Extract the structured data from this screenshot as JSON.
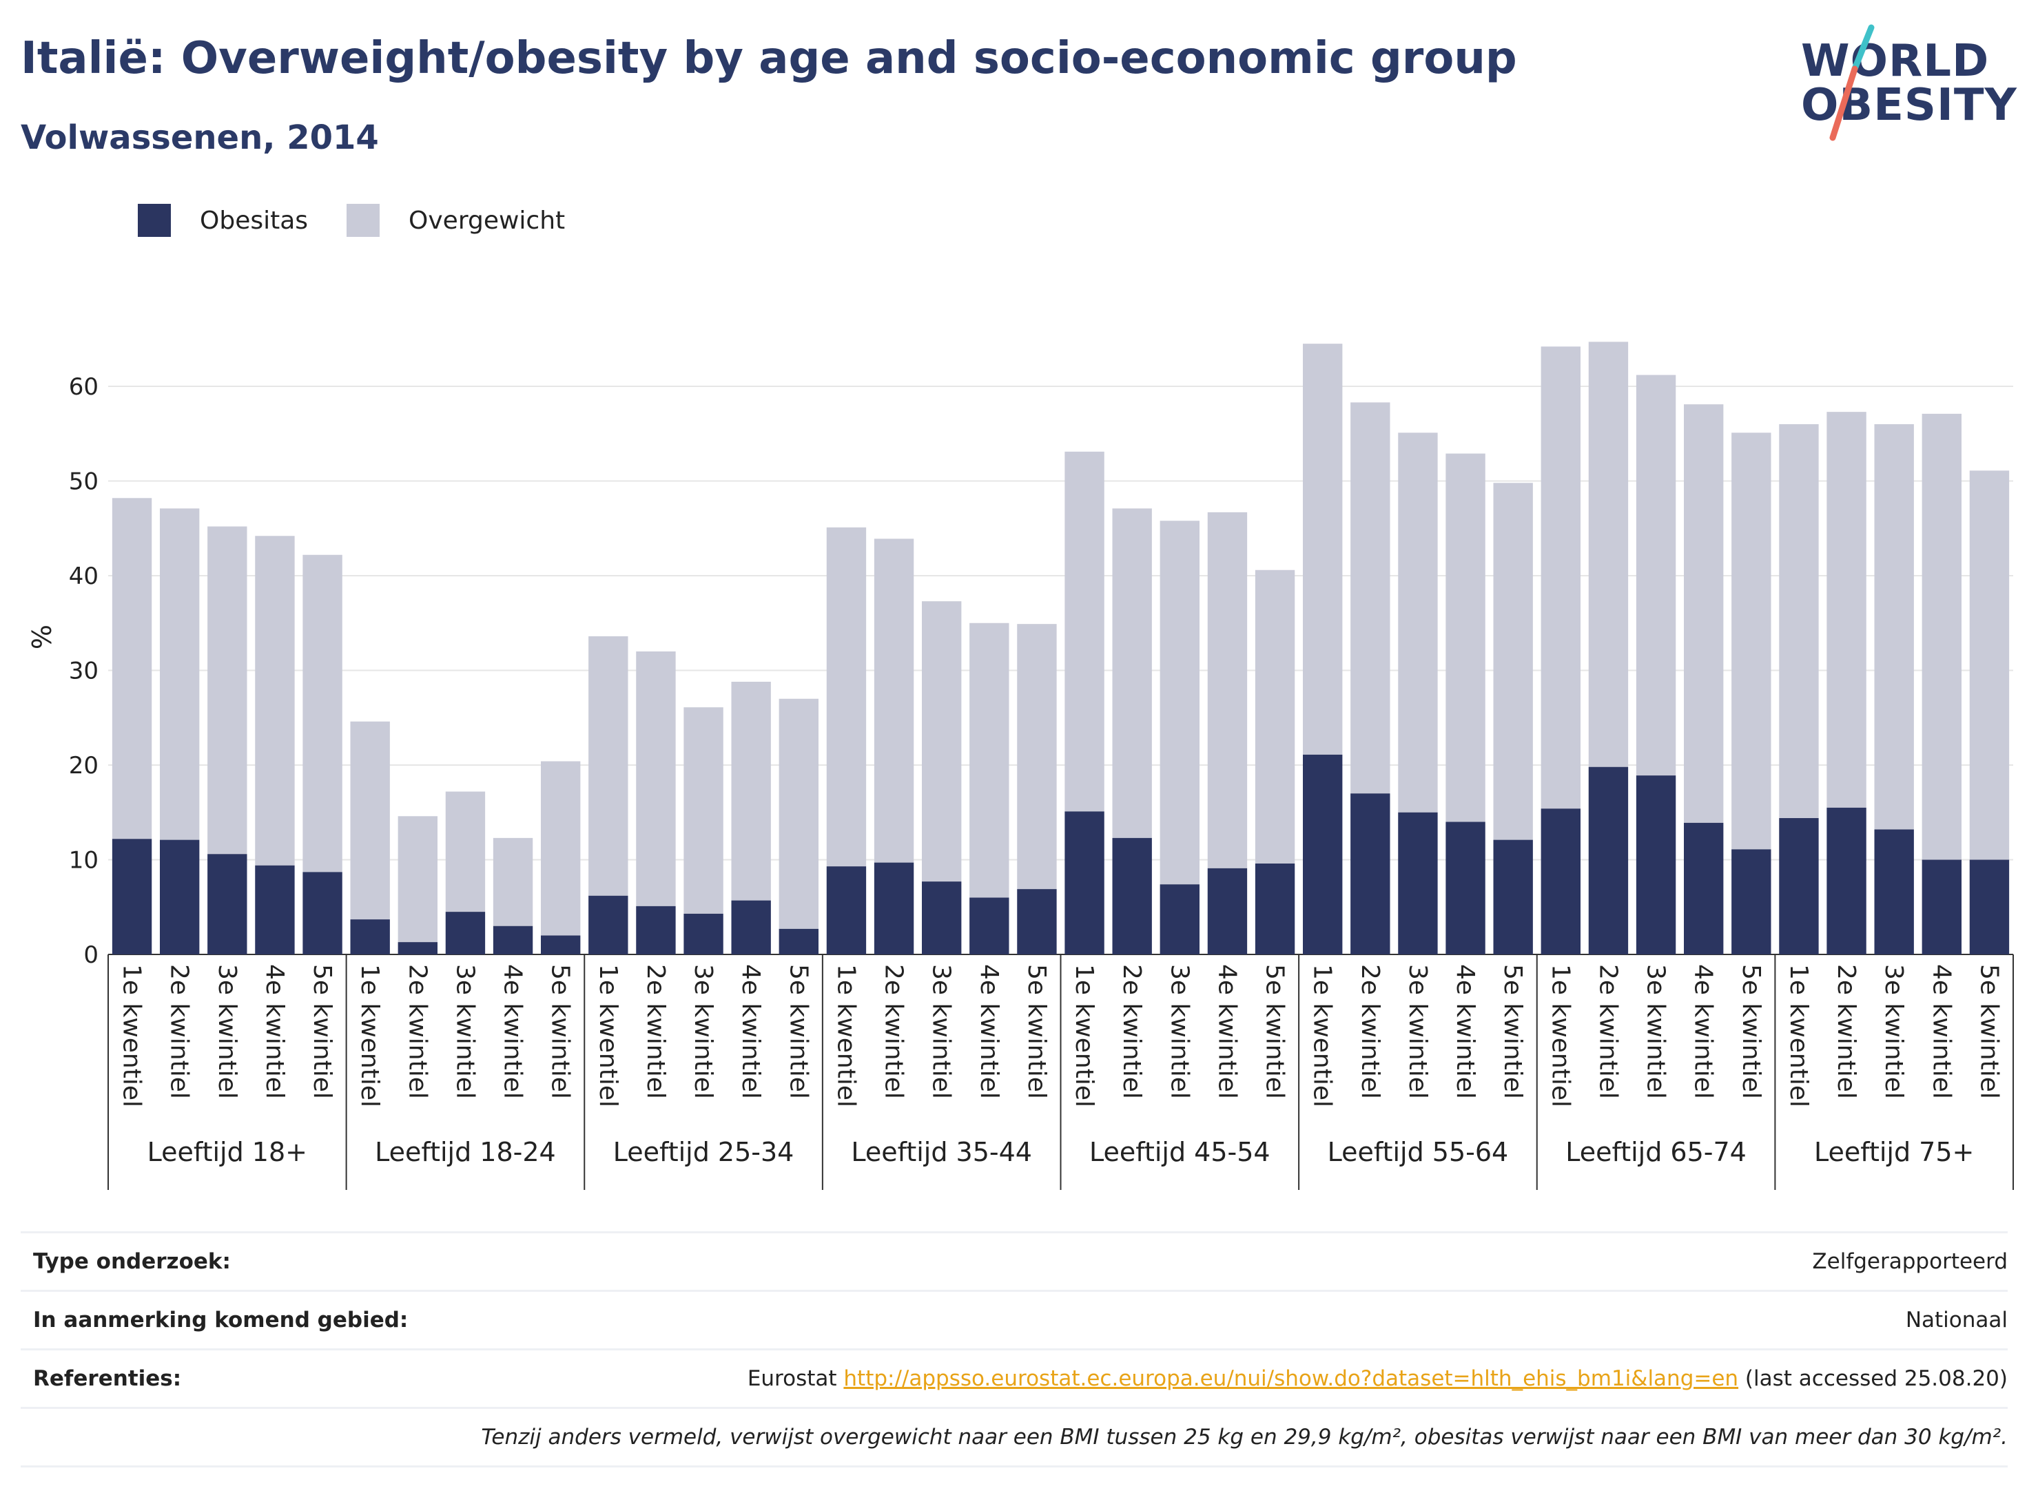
{
  "header": {
    "title": "Italië: Overweight/obesity by age and socio-economic group",
    "subtitle": "Volwassenen, 2014"
  },
  "logo": {
    "line1": "WORLD",
    "line2": "OBESITY"
  },
  "colors": {
    "obesitas": "#2b3560",
    "overgewicht": "#c9cbd8",
    "title": "#2b3a67",
    "link": "#e8a317",
    "logo_slash_top": "#3fc1c9",
    "logo_slash_bottom": "#ea6a59"
  },
  "chart_data": {
    "type": "bar",
    "stacked": true,
    "ylabel": "%",
    "ylim": [
      0,
      68
    ],
    "yticks": [
      0,
      10,
      20,
      30,
      40,
      50,
      60
    ],
    "grid": true,
    "legend_position": "top-left",
    "legend": [
      "Obesitas",
      "Overgewicht"
    ],
    "groups": [
      "Leeftijd 18+",
      "Leeftijd 18-24",
      "Leeftijd 25-34",
      "Leeftijd 35-44",
      "Leeftijd 45-54",
      "Leeftijd 55-64",
      "Leeftijd 65-74",
      "Leeftijd 75+"
    ],
    "categories": [
      "1e kwentiel",
      "2e kwintiel",
      "3e kwintiel",
      "4e kwintiel",
      "5e kwintiel"
    ],
    "series": [
      {
        "name": "Obesitas",
        "values": [
          [
            12.2,
            12.1,
            10.6,
            9.4,
            8.7
          ],
          [
            3.7,
            1.3,
            4.5,
            3.0,
            2.0
          ],
          [
            6.2,
            5.1,
            4.3,
            5.7,
            2.7
          ],
          [
            9.3,
            9.7,
            7.7,
            6.0,
            6.9
          ],
          [
            15.1,
            12.3,
            7.4,
            9.1,
            9.6
          ],
          [
            21.1,
            17.0,
            15.0,
            14.0,
            12.1
          ],
          [
            15.4,
            19.8,
            18.9,
            13.9,
            11.1
          ],
          [
            14.4,
            15.5,
            13.2,
            10.0,
            10.0
          ]
        ]
      },
      {
        "name": "Overgewicht",
        "values": [
          [
            36.0,
            35.0,
            34.6,
            34.8,
            33.5
          ],
          [
            20.9,
            13.3,
            12.7,
            9.3,
            18.4
          ],
          [
            27.4,
            26.9,
            21.8,
            23.1,
            24.3
          ],
          [
            35.8,
            34.2,
            29.6,
            29.0,
            28.0
          ],
          [
            38.0,
            34.8,
            38.4,
            37.6,
            31.0
          ],
          [
            43.4,
            41.3,
            40.1,
            38.9,
            37.7
          ],
          [
            48.8,
            44.9,
            42.3,
            44.2,
            44.0
          ],
          [
            41.6,
            41.8,
            42.8,
            47.1,
            41.1
          ]
        ]
      }
    ]
  },
  "info": {
    "rows": [
      {
        "label": "Type onderzoek:",
        "value": "Zelfgerapporteerd"
      },
      {
        "label": "In aanmerking komend gebied:",
        "value": "Nationaal"
      },
      {
        "label": "Referenties:",
        "prefix": "Eurostat ",
        "link": "http://appsso.eurostat.ec.europa.eu/nui/show.do?dataset=hlth_ehis_bm1i&lang=en",
        "suffix": " (last accessed 25.08.20)"
      }
    ],
    "note": "Tenzij anders vermeld, verwijst overgewicht naar een BMI tussen 25 kg en 29,9 kg/m², obesitas verwijst naar een BMI van meer dan 30 kg/m²."
  }
}
